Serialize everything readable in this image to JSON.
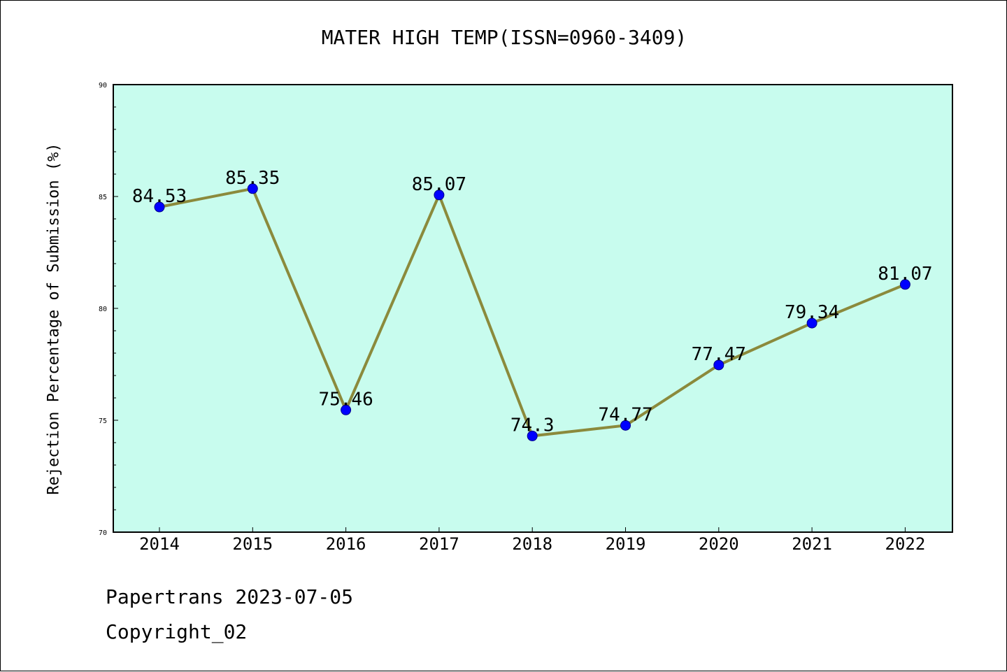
{
  "chart_data": {
    "type": "line",
    "title": "MATER HIGH TEMP(ISSN=0960-3409)",
    "xlabel": "",
    "ylabel": "Rejection Percentage of Submission (%)",
    "categories": [
      "2014",
      "2015",
      "2016",
      "2017",
      "2018",
      "2019",
      "2020",
      "2021",
      "2022"
    ],
    "series": [
      {
        "values": [
          84.53,
          85.35,
          75.46,
          85.07,
          74.3,
          74.77,
          77.47,
          79.34,
          81.07
        ],
        "value_labels": [
          "84.53",
          "85.35",
          "75.46",
          "85.07",
          "74.3",
          "74.77",
          "77.47",
          "79.34",
          "81.07"
        ]
      }
    ],
    "ylim": [
      70,
      90
    ],
    "yticks": [
      "70",
      "75",
      "80",
      "85",
      "90"
    ],
    "grid": false,
    "legend": "none",
    "colors": {
      "plot_background": "#c8fcee",
      "line": "#8b8a3c",
      "marker_fill": "#0000ff",
      "marker_stroke": "#00008b",
      "axes": "#000000"
    }
  },
  "footer": {
    "source": "Papertrans 2023-07-05",
    "copyright": "Copyright_02"
  }
}
